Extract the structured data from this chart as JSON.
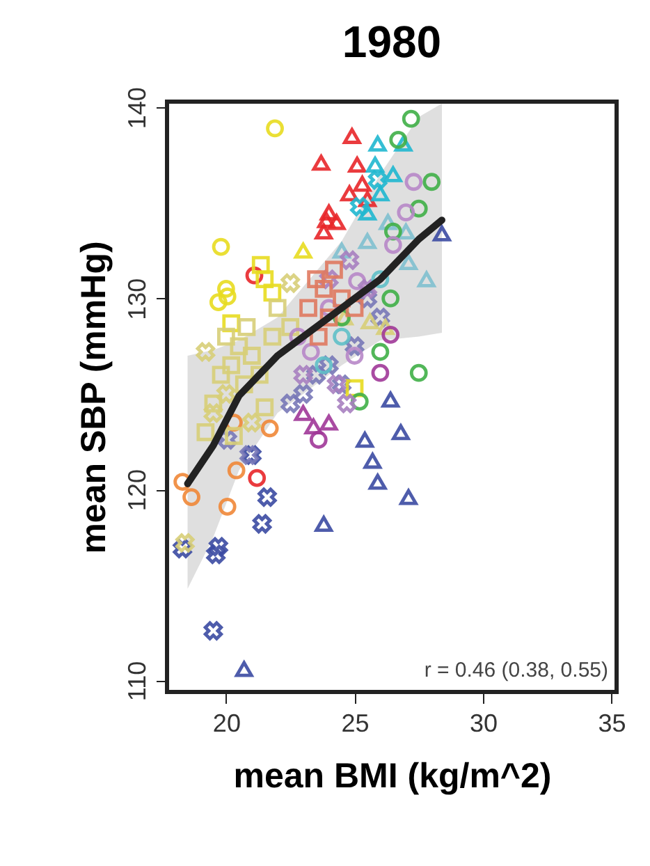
{
  "chart_data": {
    "type": "scatter",
    "title": "1980",
    "xlabel": "mean BMI (kg/m^2)",
    "ylabel": "mean SBP (mmHg)",
    "annotations": [
      "r =  0.46 (0.38, 0.55)"
    ],
    "xlim": [
      17.7,
      35.2
    ],
    "ylim": [
      109.4,
      140.3
    ],
    "xticks": [
      20,
      25,
      30,
      35
    ],
    "yticks": [
      110,
      120,
      130,
      140
    ],
    "series": [
      {
        "color": "#3b4ba3",
        "marker": "triangle",
        "x": [
          20.7,
          23.8,
          27.1,
          25.9,
          25.7,
          25.4,
          26.8,
          26.4,
          28.4
        ],
        "values": [
          110.6,
          118.2,
          119.6,
          120.4,
          121.5,
          122.6,
          123.0,
          124.7,
          133.4
        ]
      },
      {
        "color": "#3b4ba3",
        "marker": "cross",
        "x": [
          19.5,
          19.6,
          19.7,
          18.3,
          21.4,
          21.6,
          21.0
        ],
        "values": [
          112.6,
          116.6,
          117.0,
          116.9,
          118.2,
          119.6,
          121.8
        ]
      },
      {
        "color": "#7878b8",
        "marker": "cross",
        "x": [
          20.05,
          20.9,
          22.5,
          23.0,
          23.5,
          24.0,
          25.0,
          24.5,
          26.0,
          25.5
        ],
        "values": [
          122.6,
          121.8,
          124.5,
          125.0,
          126.0,
          126.5,
          127.5,
          125.5,
          129.0,
          130.0
        ]
      },
      {
        "color": "#f08838",
        "marker": "circle",
        "x": [
          18.3,
          18.65,
          20.05,
          20.4,
          21.7,
          20.3
        ],
        "values": [
          120.4,
          119.6,
          119.1,
          121.0,
          123.2,
          123.5
        ]
      },
      {
        "color": "#e8262a",
        "marker": "circle",
        "x": [
          21.2,
          21.1
        ],
        "values": [
          120.6,
          131.2
        ]
      },
      {
        "color": "#e8dc20",
        "marker": "circle",
        "x": [
          21.9,
          19.8,
          20.0,
          19.7,
          20.05
        ],
        "values": [
          138.9,
          132.7,
          130.5,
          129.8,
          130.1
        ]
      },
      {
        "color": "#e8dc20",
        "marker": "square",
        "x": [
          21.35,
          21.5,
          21.8,
          25.0,
          20.2
        ],
        "values": [
          131.75,
          131.0,
          130.3,
          125.3,
          128.7
        ]
      },
      {
        "color": "#d8cf78",
        "marker": "square",
        "x": [
          19.2,
          19.5,
          19.8,
          20.2,
          20.5,
          20.8,
          21.0,
          21.3,
          20.7,
          21.8,
          22.0,
          20.0,
          21.5,
          22.5,
          20.3
        ],
        "values": [
          123.0,
          124.5,
          126.0,
          126.5,
          127.5,
          128.5,
          127.0,
          126.0,
          125.5,
          128.0,
          129.5,
          128.0,
          124.3,
          128.5,
          122.8
        ]
      },
      {
        "color": "#d8cf78",
        "marker": "cross",
        "x": [
          19.2,
          20.0,
          22.5,
          19.5,
          21.0,
          18.4
        ],
        "values": [
          127.2,
          125.0,
          130.8,
          124.0,
          123.5,
          117.2
        ]
      },
      {
        "color": "#d8cf78",
        "marker": "triangle",
        "x": [
          24.6,
          25.6,
          26.2
        ],
        "values": [
          129.0,
          128.8,
          128.5
        ]
      },
      {
        "color": "#e8dc20",
        "marker": "triangle",
        "x": [
          23.0
        ],
        "values": [
          132.5
        ]
      },
      {
        "color": "#e8262a",
        "marker": "triangle",
        "x": [
          24.9,
          23.7,
          24.8,
          24.3,
          23.8,
          24.0,
          25.3,
          25.5,
          25.1,
          23.9
        ],
        "values": [
          138.5,
          137.1,
          135.5,
          134.0,
          133.5,
          134.5,
          136.0,
          135.2,
          137.0,
          134.1
        ]
      },
      {
        "color": "#20b8d0",
        "marker": "triangle",
        "x": [
          26.9,
          25.9,
          26.5,
          25.8,
          26.0,
          25.5
        ],
        "values": [
          138.1,
          138.1,
          136.5,
          137.0,
          135.5,
          134.5
        ]
      },
      {
        "color": "#20b8d0",
        "marker": "cross",
        "x": [
          25.2,
          25.9
        ],
        "values": [
          134.8,
          136.2
        ]
      },
      {
        "color": "#80c0d0",
        "marker": "triangle",
        "x": [
          26.3,
          27.0,
          27.1,
          27.8,
          25.5,
          24.5
        ],
        "values": [
          134.0,
          133.5,
          131.9,
          131.0,
          133.0,
          132.5
        ]
      },
      {
        "color": "#40b048",
        "marker": "circle",
        "x": [
          27.2,
          26.7,
          28.0,
          27.5,
          26.5,
          26.4,
          26.0,
          27.5,
          25.2,
          24.5
        ],
        "values": [
          139.4,
          138.3,
          136.1,
          134.7,
          133.5,
          130.0,
          127.2,
          126.1,
          124.6,
          129.0
        ]
      },
      {
        "color": "#a03898",
        "marker": "triangle",
        "x": [
          23.4,
          24.0,
          23.0
        ],
        "values": [
          123.3,
          123.5,
          124.0
        ]
      },
      {
        "color": "#a03898",
        "marker": "circle",
        "x": [
          23.6,
          26.4,
          26.0
        ],
        "values": [
          122.6,
          128.1,
          126.1
        ]
      },
      {
        "color": "#b888c8",
        "marker": "circle",
        "x": [
          27.3,
          27.0,
          26.5,
          25.1,
          24.0,
          22.8,
          23.3,
          25.0
        ],
        "values": [
          136.1,
          134.5,
          132.8,
          130.9,
          129.5,
          128.0,
          127.2,
          127.0
        ]
      },
      {
        "color": "#a880c0",
        "marker": "cross",
        "x": [
          24.8,
          24.0,
          25.5,
          23.0,
          24.3,
          24.7
        ],
        "values": [
          132.0,
          131.0,
          130.5,
          126.0,
          125.5,
          124.5
        ]
      },
      {
        "color": "#e07a60",
        "marker": "square",
        "x": [
          23.8,
          24.2,
          23.5,
          24.5,
          23.2,
          24.0,
          23.6,
          25.0
        ],
        "values": [
          130.5,
          131.5,
          131.0,
          130.0,
          129.5,
          129.0,
          128.0,
          129.5
        ]
      },
      {
        "color": "#60c0c8",
        "marker": "circle",
        "x": [
          24.5,
          23.8,
          26.0
        ],
        "values": [
          128.0,
          126.5,
          131.0
        ]
      },
      {
        "type": "line",
        "color": "#222222",
        "x": [
          18.5,
          19.5,
          20.5,
          22.0,
          24.5,
          26.0,
          27.5,
          28.4
        ],
        "values": [
          120.3,
          122.3,
          124.9,
          127.0,
          129.5,
          131.0,
          133.1,
          134.1
        ],
        "lower": [
          114.8,
          117.5,
          121.0,
          124.0,
          126.5,
          127.8,
          128.0,
          128.2
        ],
        "upper": [
          127.0,
          127.3,
          127.8,
          129.0,
          133.0,
          136.5,
          139.5,
          140.2
        ]
      }
    ]
  }
}
